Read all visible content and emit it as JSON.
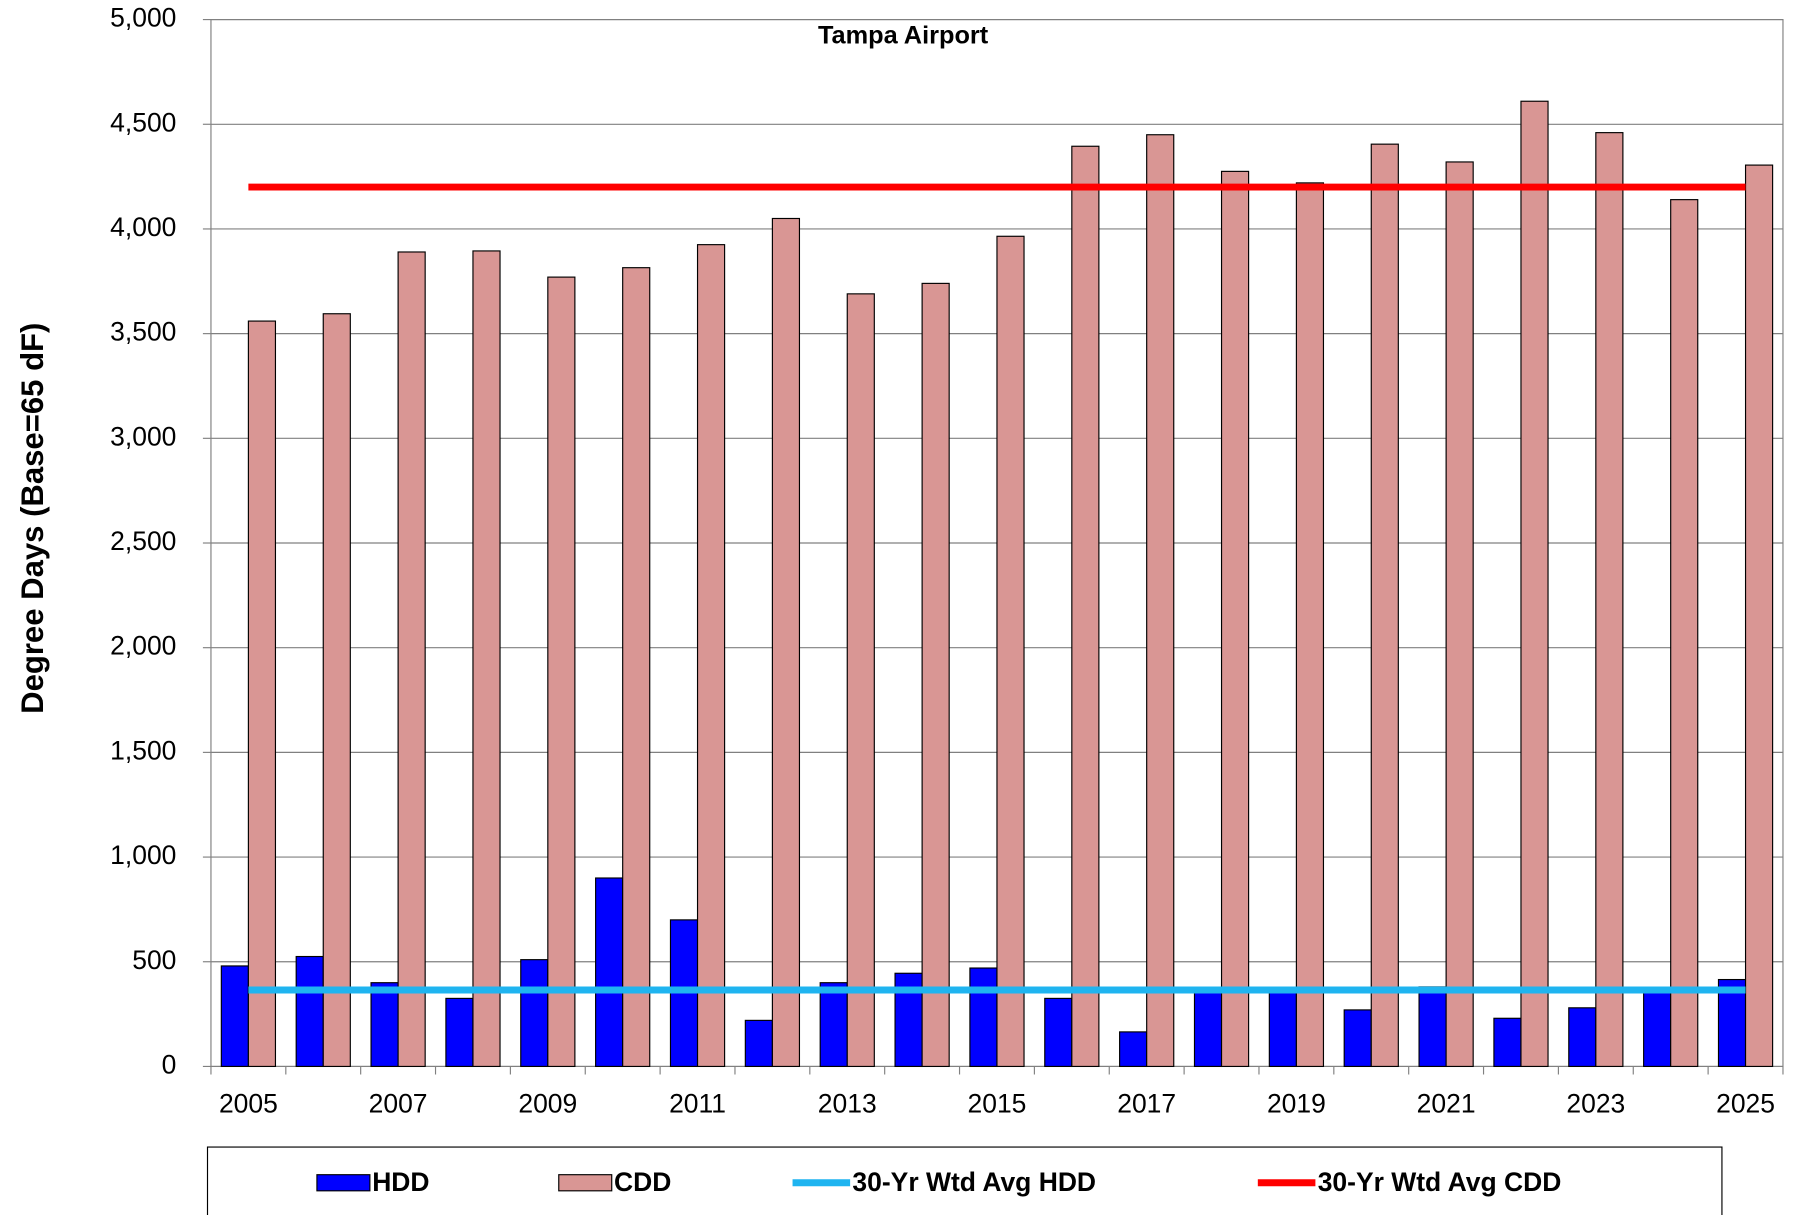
{
  "chart_data": {
    "type": "bar",
    "title": "Tampa Airport",
    "y_label": "Degree Days (Base=65 dF)",
    "categories": [
      "2005",
      null,
      "2007",
      null,
      "2009",
      null,
      "2011",
      null,
      "2013",
      null,
      "2015",
      null,
      "2017",
      null,
      "2019",
      null,
      "2021",
      null,
      "2023",
      null,
      "2025"
    ],
    "series": [
      {
        "name": "HDD",
        "color": "#0000ff",
        "values": [
          480,
          525,
          400,
          325,
          510,
          900,
          700,
          220,
          400,
          445,
          470,
          325,
          165,
          360,
          370,
          270,
          380,
          230,
          280,
          370,
          415
        ]
      },
      {
        "name": "CDD",
        "color": "#d99694",
        "values": [
          3560,
          3595,
          3890,
          3895,
          3770,
          3815,
          3925,
          4050,
          3690,
          3740,
          3965,
          4395,
          4450,
          4275,
          4220,
          4405,
          4320,
          4610,
          4460,
          4140,
          4305
        ]
      }
    ],
    "lines": [
      {
        "name": "30-Yr Wtd Avg HDD",
        "color": "#1fb4f0",
        "value": 365
      },
      {
        "name": "30-Yr Wtd Avg CDD",
        "color": "#ff0000",
        "value": 4200
      }
    ],
    "ylim": [
      0,
      5000
    ],
    "yticks": [
      0,
      500,
      {
        "value": 1000,
        "label": "1,000"
      },
      {
        "value": 1500,
        "label": "1,500"
      },
      {
        "value": 2000,
        "label": "2,000"
      },
      {
        "value": 2500,
        "label": "2,500"
      },
      {
        "value": 3000,
        "label": "3,000"
      },
      {
        "value": 3500,
        "label": "3,500"
      },
      {
        "value": 4000,
        "label": "4,000"
      },
      {
        "value": 4500,
        "label": "4,500"
      },
      {
        "value": 5000,
        "label": "5,000"
      }
    ],
    "grid": true,
    "legend": "bottom"
  }
}
